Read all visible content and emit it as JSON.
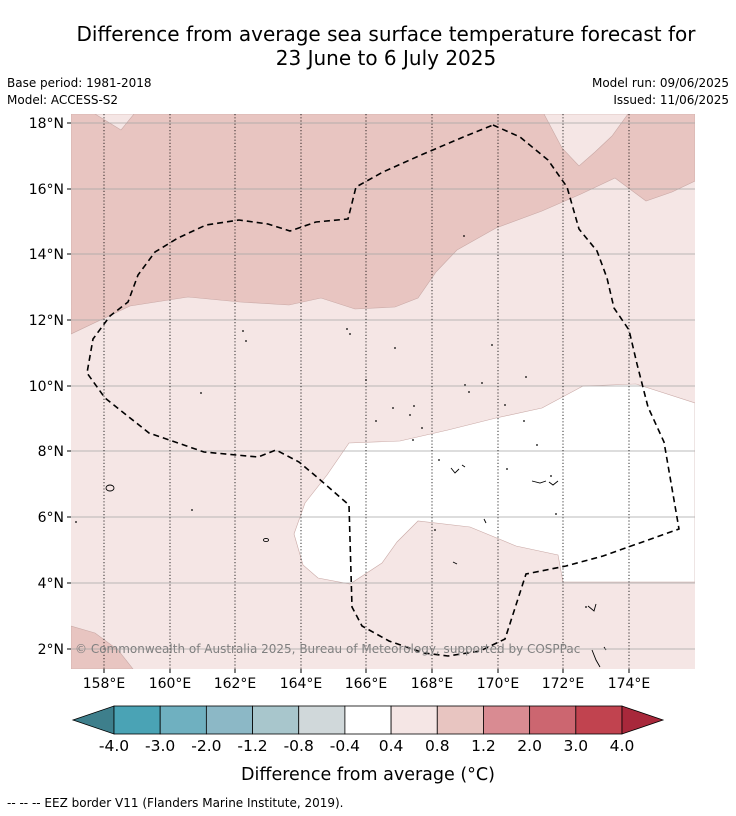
{
  "header": {
    "title_line1": "Difference from average sea surface temperature forecast for",
    "title_line2": "23 June to 6 July 2025",
    "base_period": "Base period: 1981-2018",
    "model": "Model: ACCESS-S2",
    "model_run": "Model run: 09/06/2025",
    "issued": "Issued: 11/06/2025"
  },
  "map": {
    "lon_ticks": [
      "158°E",
      "160°E",
      "162°E",
      "164°E",
      "166°E",
      "168°E",
      "170°E",
      "172°E",
      "174°E"
    ],
    "lat_ticks": [
      "18°N",
      "16°N",
      "14°N",
      "12°N",
      "10°N",
      "8°N",
      "6°N",
      "4°N",
      "2°N"
    ],
    "copyright": "© Commonwealth of Australia 2025, Bureau of Meteorology, supported by COSPPac"
  },
  "colorbar": {
    "labels": [
      "-4.0",
      "-3.0",
      "-2.0",
      "-1.2",
      "-0.8",
      "-0.4",
      "0.4",
      "0.8",
      "1.2",
      "2.0",
      "3.0",
      "4.0"
    ],
    "colors": [
      "#3e7f8c",
      "#4aa3b5",
      "#6fb0c0",
      "#8cb8c6",
      "#a8c6cc",
      "#d0d8da",
      "#ffffff",
      "#f5e6e5",
      "#e8c5c1",
      "#d98b92",
      "#cc6670",
      "#c1434f",
      "#a8283b"
    ],
    "title": "Difference from average (°C)"
  },
  "footer": {
    "legend": "--  --  -- EEZ border V11 (Flanders Marine Institute, 2019)."
  }
}
